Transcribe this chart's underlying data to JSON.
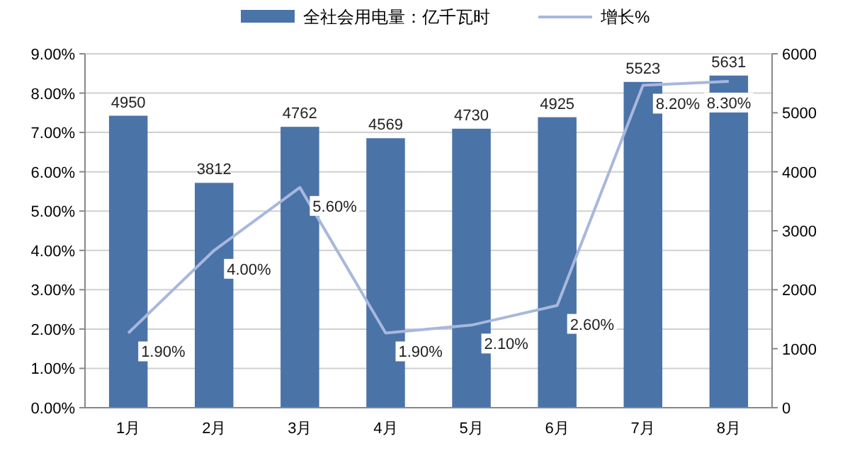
{
  "chart_data": {
    "type": "bar",
    "categories": [
      "1月",
      "2月",
      "3月",
      "4月",
      "5月",
      "6月",
      "7月",
      "8月"
    ],
    "series": [
      {
        "name": "全社会用电量：亿千瓦时",
        "axis": "y2",
        "color": "#4a73a8",
        "values": [
          4950,
          3812,
          4762,
          4569,
          4730,
          4925,
          5523,
          5631
        ],
        "value_labels": [
          "4950",
          "3812",
          "4762",
          "4569",
          "4730",
          "4925",
          "5523",
          "5631"
        ]
      },
      {
        "name": "增长%",
        "type": "line",
        "color": "#a8b8dc",
        "values": [
          1.9,
          4.0,
          5.6,
          1.9,
          2.1,
          2.6,
          8.2,
          8.3
        ],
        "value_labels": [
          "1.90%",
          "4.00%",
          "5.60%",
          "1.90%",
          "2.10%",
          "2.60%",
          "8.20%",
          "8.30%"
        ]
      }
    ],
    "ylim": [
      0,
      9
    ],
    "yticks": [
      {
        "value": 0,
        "label": "0.00%"
      },
      {
        "value": 1,
        "label": "1.00%"
      },
      {
        "value": 2,
        "label": "2.00%"
      },
      {
        "value": 3,
        "label": "3.00%"
      },
      {
        "value": 4,
        "label": "4.00%"
      },
      {
        "value": 5,
        "label": "5.00%"
      },
      {
        "value": 6,
        "label": "6.00%"
      },
      {
        "value": 7,
        "label": "7.00%"
      },
      {
        "value": 8,
        "label": "8.00%"
      },
      {
        "value": 9,
        "label": "9.00%"
      }
    ],
    "y2lim": [
      0,
      6000
    ],
    "y2ticks": [
      0,
      1000,
      2000,
      3000,
      4000,
      5000,
      6000
    ],
    "grid": "y",
    "legend": "top",
    "marker": "none",
    "line_style": "solid"
  }
}
